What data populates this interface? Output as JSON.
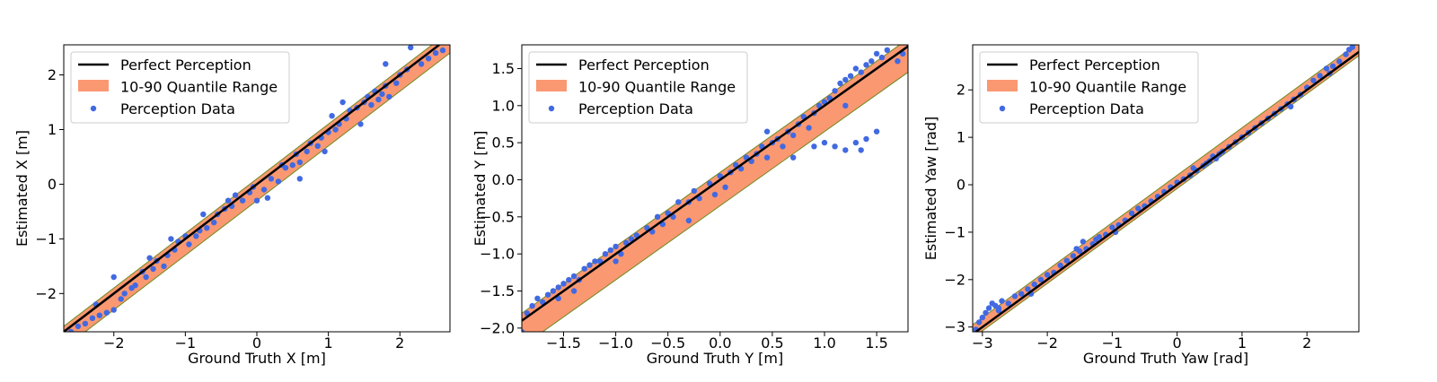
{
  "colors": {
    "perfect_line": "#000000",
    "quantile_band": "#fa9872",
    "quantile_edge": "#6f8a1f",
    "points": "#4169e1"
  },
  "chart_data": [
    {
      "type": "scatter",
      "xlabel": "Ground Truth X [m]",
      "ylabel": "Estimated X [m]",
      "xlim": [
        -2.7,
        2.7
      ],
      "ylim": [
        -2.7,
        2.55
      ],
      "xticks": [
        -2,
        -1,
        0,
        1,
        2
      ],
      "yticks": [
        -2,
        -1,
        0,
        1,
        2
      ],
      "grid": false,
      "legend_position": "top-left",
      "legend": [
        "Perfect Perception",
        "10-90 Quantile Range",
        "Perception Data"
      ],
      "perfect_line": {
        "slope": 1,
        "intercept": 0
      },
      "band": {
        "upper_offset": 0.1,
        "lower_offset": -0.3
      },
      "series": [
        {
          "name": "Perception Data",
          "points": [
            [
              -2.6,
              -2.7
            ],
            [
              -2.5,
              -2.6
            ],
            [
              -2.4,
              -2.55
            ],
            [
              -2.3,
              -2.45
            ],
            [
              -2.2,
              -2.4
            ],
            [
              -2.1,
              -2.35
            ],
            [
              -2.0,
              -2.3
            ],
            [
              -1.9,
              -2.1
            ],
            [
              -1.85,
              -2.0
            ],
            [
              -1.75,
              -1.9
            ],
            [
              -1.7,
              -1.85
            ],
            [
              -1.6,
              -1.6
            ],
            [
              -1.55,
              -1.7
            ],
            [
              -1.45,
              -1.55
            ],
            [
              -1.4,
              -1.4
            ],
            [
              -1.3,
              -1.5
            ],
            [
              -1.25,
              -1.3
            ],
            [
              -1.15,
              -1.2
            ],
            [
              -1.1,
              -1.05
            ],
            [
              -1.0,
              -0.95
            ],
            [
              -0.95,
              -1.1
            ],
            [
              -0.85,
              -0.95
            ],
            [
              -0.8,
              -0.85
            ],
            [
              -0.7,
              -0.8
            ],
            [
              -0.6,
              -0.7
            ],
            [
              -0.55,
              -0.55
            ],
            [
              -0.45,
              -0.45
            ],
            [
              -0.35,
              -0.4
            ],
            [
              -0.3,
              -0.2
            ],
            [
              -0.2,
              -0.3
            ],
            [
              -0.1,
              -0.15
            ],
            [
              -0.05,
              -0.05
            ],
            [
              0.0,
              -0.3
            ],
            [
              0.1,
              -0.1
            ],
            [
              0.2,
              0.1
            ],
            [
              0.3,
              0.05
            ],
            [
              0.4,
              0.3
            ],
            [
              0.5,
              0.35
            ],
            [
              0.55,
              0.55
            ],
            [
              0.6,
              0.4
            ],
            [
              0.7,
              0.6
            ],
            [
              0.75,
              0.75
            ],
            [
              0.85,
              0.7
            ],
            [
              0.9,
              0.85
            ],
            [
              1.0,
              0.95
            ],
            [
              1.1,
              1.0
            ],
            [
              1.15,
              1.1
            ],
            [
              1.25,
              1.2
            ],
            [
              1.3,
              1.35
            ],
            [
              1.4,
              1.4
            ],
            [
              1.5,
              1.5
            ],
            [
              1.55,
              1.6
            ],
            [
              1.6,
              1.45
            ],
            [
              1.65,
              1.7
            ],
            [
              1.7,
              1.55
            ],
            [
              1.75,
              1.65
            ],
            [
              1.8,
              1.8
            ],
            [
              1.85,
              1.6
            ],
            [
              1.95,
              1.85
            ],
            [
              2.0,
              2.0
            ],
            [
              2.1,
              2.1
            ],
            [
              2.15,
              2.5
            ],
            [
              2.3,
              2.2
            ],
            [
              2.4,
              2.3
            ],
            [
              2.5,
              2.4
            ],
            [
              2.6,
              2.45
            ],
            [
              -2.0,
              -1.7
            ],
            [
              -1.2,
              -1.0
            ],
            [
              -0.4,
              -0.3
            ],
            [
              0.6,
              0.1
            ],
            [
              1.2,
              1.5
            ],
            [
              1.8,
              2.2
            ],
            [
              -1.5,
              -1.35
            ],
            [
              0.15,
              -0.25
            ],
            [
              0.95,
              0.6
            ],
            [
              1.45,
              1.1
            ],
            [
              -0.75,
              -0.55
            ],
            [
              -2.25,
              -2.2
            ],
            [
              0.35,
              0.35
            ],
            [
              1.05,
              1.25
            ]
          ]
        }
      ]
    },
    {
      "type": "scatter",
      "xlabel": "Ground Truth Y [m]",
      "ylabel": "Estimated Y [m]",
      "xlim": [
        -1.9,
        1.8
      ],
      "ylim": [
        -2.05,
        1.82
      ],
      "xticks": [
        -1.5,
        -1.0,
        -0.5,
        0.0,
        0.5,
        1.0,
        1.5
      ],
      "yticks": [
        -2.0,
        -1.5,
        -1.0,
        -0.5,
        0.0,
        0.5,
        1.0,
        1.5
      ],
      "grid": false,
      "legend_position": "top-left",
      "legend": [
        "Perfect Perception",
        "10-90 Quantile Range",
        "Perception Data"
      ],
      "perfect_line": {
        "slope": 1,
        "intercept": 0
      },
      "band": {
        "upper_offset": 0.1,
        "lower_offset": -0.35
      },
      "series": [
        {
          "name": "Perception Data",
          "points": [
            [
              -1.85,
              -1.8
            ],
            [
              -1.8,
              -1.7
            ],
            [
              -1.75,
              -1.6
            ],
            [
              -1.7,
              -1.65
            ],
            [
              -1.65,
              -1.55
            ],
            [
              -1.6,
              -1.5
            ],
            [
              -1.55,
              -1.45
            ],
            [
              -1.5,
              -1.4
            ],
            [
              -1.45,
              -1.35
            ],
            [
              -1.4,
              -1.3
            ],
            [
              -1.35,
              -1.35
            ],
            [
              -1.3,
              -1.2
            ],
            [
              -1.25,
              -1.15
            ],
            [
              -1.2,
              -1.1
            ],
            [
              -1.15,
              -1.1
            ],
            [
              -1.1,
              -1.0
            ],
            [
              -1.05,
              -0.95
            ],
            [
              -1.0,
              -0.9
            ],
            [
              -0.95,
              -1.0
            ],
            [
              -0.9,
              -0.85
            ],
            [
              -0.85,
              -0.8
            ],
            [
              -0.8,
              -0.75
            ],
            [
              -0.7,
              -0.65
            ],
            [
              -0.65,
              -0.7
            ],
            [
              -0.6,
              -0.5
            ],
            [
              -0.5,
              -0.45
            ],
            [
              -0.45,
              -0.5
            ],
            [
              -0.4,
              -0.3
            ],
            [
              -0.3,
              -0.3
            ],
            [
              -0.25,
              -0.15
            ],
            [
              -0.2,
              -0.25
            ],
            [
              -0.1,
              -0.05
            ],
            [
              -0.05,
              -0.2
            ],
            [
              0.0,
              0.05
            ],
            [
              0.05,
              -0.1
            ],
            [
              0.1,
              0.1
            ],
            [
              0.15,
              0.2
            ],
            [
              0.2,
              0.15
            ],
            [
              0.25,
              0.3
            ],
            [
              0.3,
              0.25
            ],
            [
              0.35,
              0.35
            ],
            [
              0.4,
              0.45
            ],
            [
              0.45,
              0.3
            ],
            [
              0.5,
              0.5
            ],
            [
              0.55,
              0.55
            ],
            [
              0.6,
              0.45
            ],
            [
              0.65,
              0.65
            ],
            [
              0.7,
              0.6
            ],
            [
              0.75,
              0.75
            ],
            [
              0.8,
              0.85
            ],
            [
              0.85,
              0.7
            ],
            [
              0.9,
              0.9
            ],
            [
              0.95,
              1.0
            ],
            [
              1.0,
              1.05
            ],
            [
              1.05,
              1.1
            ],
            [
              1.1,
              1.2
            ],
            [
              1.15,
              1.3
            ],
            [
              1.2,
              1.35
            ],
            [
              1.25,
              1.4
            ],
            [
              1.3,
              1.5
            ],
            [
              1.35,
              1.45
            ],
            [
              1.4,
              1.55
            ],
            [
              1.45,
              1.6
            ],
            [
              1.5,
              1.7
            ],
            [
              1.55,
              1.65
            ],
            [
              1.6,
              1.75
            ],
            [
              1.7,
              1.6
            ],
            [
              1.75,
              1.7
            ],
            [
              0.9,
              0.45
            ],
            [
              1.0,
              0.5
            ],
            [
              1.1,
              0.45
            ],
            [
              1.2,
              0.4
            ],
            [
              1.3,
              0.5
            ],
            [
              1.4,
              0.55
            ],
            [
              1.5,
              0.65
            ],
            [
              1.35,
              0.4
            ],
            [
              -1.4,
              -1.5
            ],
            [
              -1.0,
              -1.1
            ],
            [
              -0.3,
              -0.55
            ],
            [
              0.7,
              0.3
            ],
            [
              -1.55,
              -1.6
            ],
            [
              -0.55,
              -0.6
            ],
            [
              1.2,
              1.0
            ],
            [
              0.45,
              0.65
            ],
            [
              -1.9,
              -2.05
            ]
          ]
        }
      ]
    },
    {
      "type": "scatter",
      "xlabel": "Ground Truth Yaw [rad]",
      "ylabel": "Estimated Yaw [rad]",
      "xlim": [
        -3.15,
        2.8
      ],
      "ylim": [
        -3.1,
        2.95
      ],
      "xticks": [
        -3,
        -2,
        -1,
        0,
        1,
        2
      ],
      "yticks": [
        -3,
        -2,
        -1,
        0,
        1,
        2
      ],
      "grid": false,
      "legend_position": "top-left",
      "legend": [
        "Perfect Perception",
        "10-90 Quantile Range",
        "Perception Data"
      ],
      "perfect_line": {
        "slope": 1,
        "intercept": 0
      },
      "band": {
        "upper_offset": 0.2,
        "lower_offset": -0.08
      },
      "series": [
        {
          "name": "Perception Data",
          "points": [
            [
              -3.1,
              -3.05
            ],
            [
              -3.05,
              -2.9
            ],
            [
              -3.0,
              -2.8
            ],
            [
              -2.95,
              -2.7
            ],
            [
              -2.9,
              -2.6
            ],
            [
              -2.85,
              -2.5
            ],
            [
              -2.8,
              -2.55
            ],
            [
              -2.75,
              -2.6
            ],
            [
              -2.7,
              -2.45
            ],
            [
              -2.6,
              -2.5
            ],
            [
              -2.5,
              -2.35
            ],
            [
              -2.4,
              -2.3
            ],
            [
              -2.3,
              -2.2
            ],
            [
              -2.2,
              -2.1
            ],
            [
              -2.1,
              -2.0
            ],
            [
              -2.0,
              -1.9
            ],
            [
              -1.9,
              -1.85
            ],
            [
              -1.8,
              -1.7
            ],
            [
              -1.7,
              -1.6
            ],
            [
              -1.6,
              -1.5
            ],
            [
              -1.5,
              -1.4
            ],
            [
              -1.45,
              -1.2
            ],
            [
              -1.4,
              -1.35
            ],
            [
              -1.3,
              -1.25
            ],
            [
              -1.2,
              -1.1
            ],
            [
              -1.1,
              -1.05
            ],
            [
              -1.0,
              -0.9
            ],
            [
              -0.9,
              -0.85
            ],
            [
              -0.8,
              -0.75
            ],
            [
              -0.7,
              -0.6
            ],
            [
              -0.6,
              -0.5
            ],
            [
              -0.5,
              -0.45
            ],
            [
              -0.4,
              -0.35
            ],
            [
              -0.3,
              -0.25
            ],
            [
              -0.2,
              -0.15
            ],
            [
              -0.1,
              -0.05
            ],
            [
              0.0,
              0.05
            ],
            [
              0.1,
              0.12
            ],
            [
              0.2,
              0.2
            ],
            [
              0.3,
              0.3
            ],
            [
              0.4,
              0.4
            ],
            [
              0.5,
              0.5
            ],
            [
              0.55,
              0.6
            ],
            [
              0.6,
              0.55
            ],
            [
              0.65,
              0.65
            ],
            [
              0.7,
              0.7
            ],
            [
              0.8,
              0.8
            ],
            [
              0.9,
              0.9
            ],
            [
              1.0,
              1.0
            ],
            [
              1.1,
              1.1
            ],
            [
              1.2,
              1.2
            ],
            [
              1.3,
              1.3
            ],
            [
              1.4,
              1.4
            ],
            [
              1.5,
              1.5
            ],
            [
              1.6,
              1.6
            ],
            [
              1.7,
              1.7
            ],
            [
              1.8,
              1.8
            ],
            [
              1.9,
              1.9
            ],
            [
              2.0,
              2.05
            ],
            [
              2.1,
              2.2
            ],
            [
              2.2,
              2.3
            ],
            [
              2.3,
              2.45
            ],
            [
              2.4,
              2.5
            ],
            [
              2.5,
              2.6
            ],
            [
              2.6,
              2.75
            ],
            [
              2.7,
              2.9
            ],
            [
              2.65,
              2.85
            ],
            [
              -2.75,
              -2.65
            ],
            [
              -1.55,
              -1.35
            ],
            [
              -0.95,
              -1.0
            ],
            [
              0.45,
              0.45
            ],
            [
              1.75,
              1.65
            ],
            [
              2.35,
              2.35
            ],
            [
              -2.25,
              -2.3
            ],
            [
              -1.25,
              -1.15
            ],
            [
              0.25,
              0.35
            ]
          ]
        }
      ]
    }
  ]
}
